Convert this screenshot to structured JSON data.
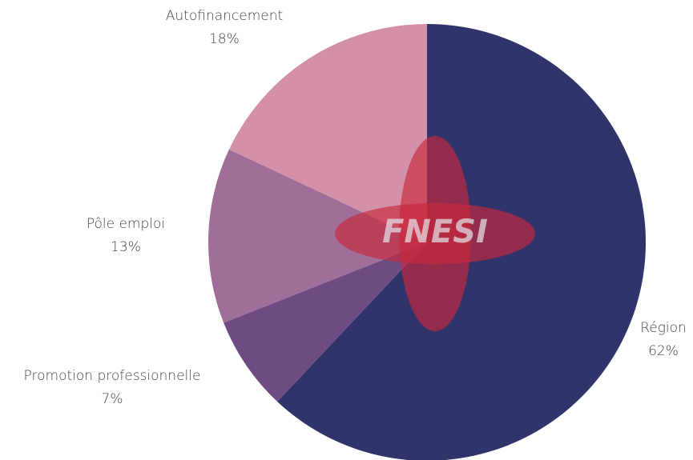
{
  "chart_data": {
    "type": "pie",
    "categories": [
      "Région",
      "Promotion professionnelle",
      "Pôle emploi",
      "Autofinancement"
    ],
    "values": [
      62,
      7,
      13,
      18
    ],
    "value_labels": [
      "62%",
      "7%",
      "13%",
      "18%"
    ],
    "colors": [
      "#31346b",
      "#6f4b84",
      "#a06e98",
      "#d48fa9"
    ]
  },
  "watermark": "FNESI"
}
